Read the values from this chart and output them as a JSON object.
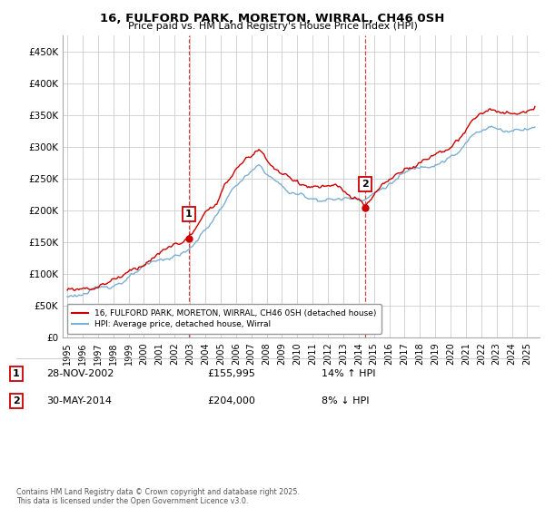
{
  "title_line1": "16, FULFORD PARK, MORETON, WIRRAL, CH46 0SH",
  "title_line2": "Price paid vs. HM Land Registry's House Price Index (HPI)",
  "legend_line1": "16, FULFORD PARK, MORETON, WIRRAL, CH46 0SH (detached house)",
  "legend_line2": "HPI: Average price, detached house, Wirral",
  "footnote": "Contains HM Land Registry data © Crown copyright and database right 2025.\nThis data is licensed under the Open Government Licence v3.0.",
  "sale1_date": "28-NOV-2002",
  "sale1_price": 155995,
  "sale1_pct": "14% ↑ HPI",
  "sale2_date": "30-MAY-2014",
  "sale2_price": 204000,
  "sale2_pct": "8% ↓ HPI",
  "sale1_year": 2002.91,
  "sale2_year": 2014.41,
  "property_color": "#cc0000",
  "hpi_color": "#7bafd4",
  "vline_color": "#cc0000",
  "background_color": "#ffffff",
  "grid_color": "#cccccc",
  "ylim": [
    0,
    475000
  ],
  "xlim_start": 1994.7,
  "xlim_end": 2025.8,
  "yticks": [
    0,
    50000,
    100000,
    150000,
    200000,
    250000,
    300000,
    350000,
    400000,
    450000
  ]
}
